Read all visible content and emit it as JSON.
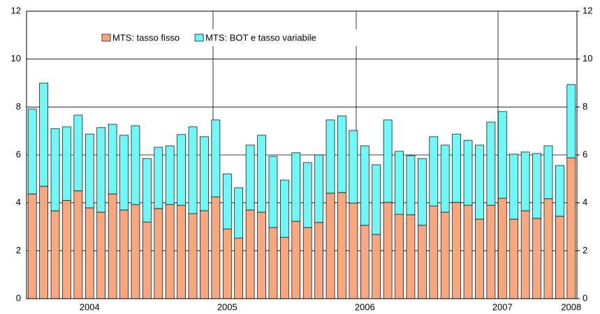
{
  "chart_data": {
    "type": "bar",
    "stacked": true,
    "categories": [
      null,
      null,
      null,
      null,
      null,
      "2004",
      null,
      null,
      null,
      null,
      null,
      null,
      null,
      null,
      null,
      null,
      null,
      "2005",
      null,
      null,
      null,
      null,
      null,
      null,
      null,
      null,
      null,
      null,
      null,
      "2006",
      null,
      null,
      null,
      null,
      null,
      null,
      null,
      null,
      null,
      null,
      null,
      "2007",
      null,
      null,
      null,
      null,
      null,
      "2008"
    ],
    "series": [
      {
        "name": "MTS: tasso fisso",
        "color": "#f9a77f",
        "values": [
          4.37,
          4.69,
          3.67,
          4.1,
          4.5,
          3.79,
          3.61,
          4.37,
          3.7,
          3.93,
          3.2,
          3.76,
          3.93,
          3.9,
          3.55,
          3.67,
          4.25,
          2.91,
          2.53,
          3.7,
          3.61,
          2.97,
          2.56,
          3.23,
          2.97,
          3.18,
          4.4,
          4.43,
          3.99,
          3.06,
          2.68,
          4.02,
          3.52,
          3.5,
          3.06,
          3.87,
          3.61,
          4.02,
          3.9,
          3.32,
          3.9,
          4.19,
          3.32,
          3.67,
          3.35,
          4.17,
          3.44,
          5.88
        ]
      },
      {
        "name": "MTS: BOT e tasso variabile",
        "color": "#70f8f8",
        "values": [
          3.55,
          4.31,
          3.43,
          3.07,
          3.16,
          3.08,
          3.53,
          2.91,
          3.12,
          3.29,
          2.65,
          2.56,
          2.45,
          2.95,
          3.62,
          3.09,
          3.21,
          2.3,
          2.1,
          2.71,
          3.21,
          2.97,
          2.39,
          2.86,
          2.71,
          2.82,
          3.06,
          3.2,
          3.03,
          3.32,
          2.91,
          3.44,
          2.63,
          2.47,
          2.79,
          2.89,
          2.8,
          2.85,
          2.71,
          3.09,
          3.47,
          3.62,
          2.71,
          2.45,
          2.71,
          2.21,
          2.12,
          3.06
        ]
      }
    ],
    "ylim": [
      0,
      12
    ],
    "yticks": [
      0,
      2,
      4,
      6,
      8,
      10,
      12
    ],
    "y2lim": [
      0,
      12
    ],
    "y2ticks": [
      0,
      2,
      4,
      6,
      8,
      10,
      12
    ],
    "grid": true,
    "legend": "top"
  }
}
